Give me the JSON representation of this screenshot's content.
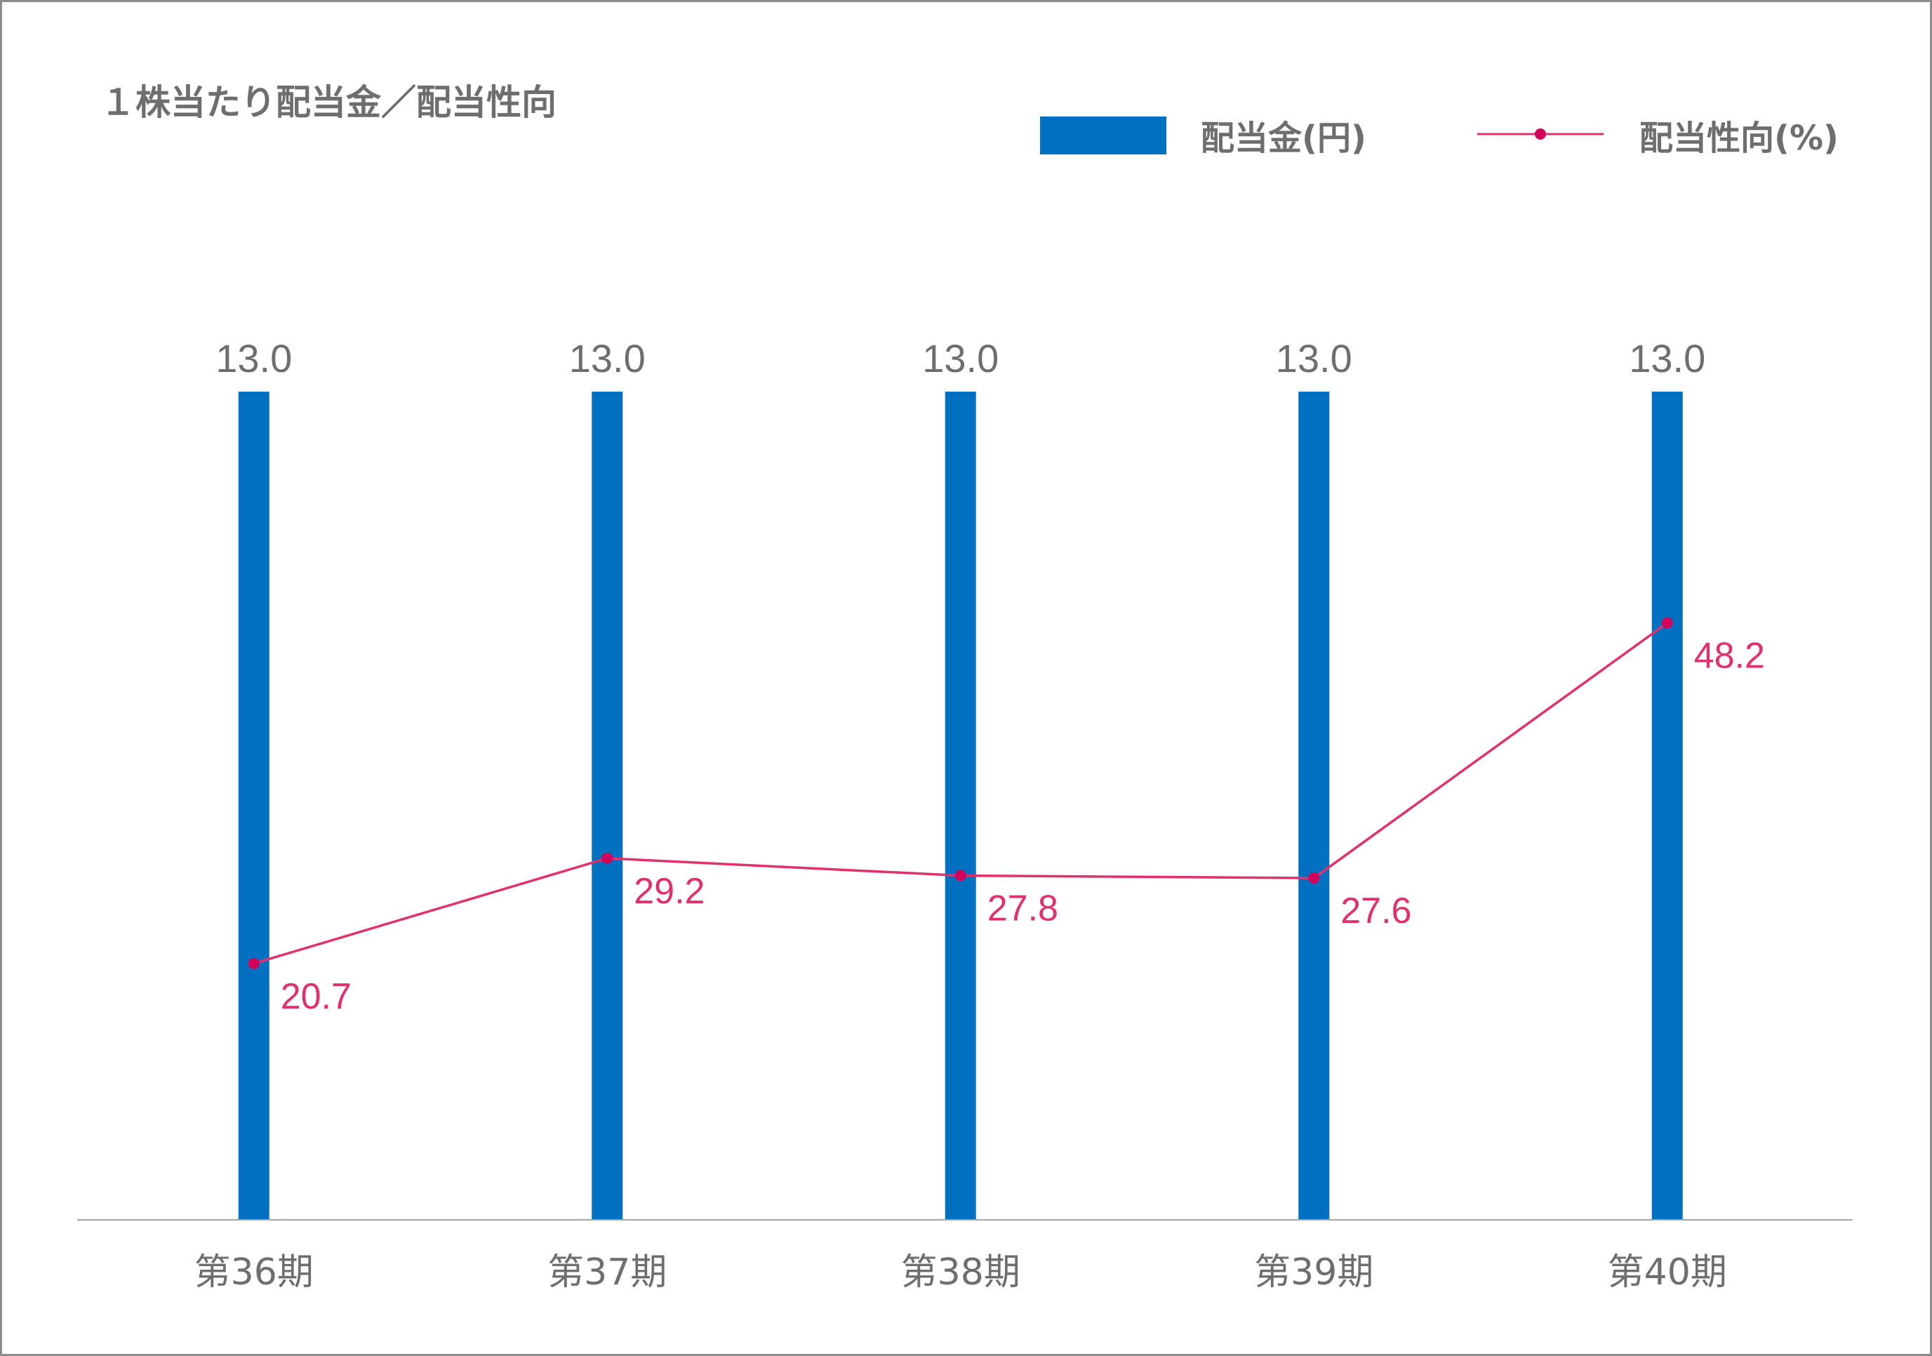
{
  "chart_data": {
    "type": "bar",
    "title": "１株当たり配当金／配当性向",
    "categories": [
      "第36期",
      "第37期",
      "第38期",
      "第39期",
      "第40期"
    ],
    "series": [
      {
        "name": "配当金(円)",
        "type": "bar",
        "values": [
          13.0,
          13.0,
          13.0,
          13.0,
          13.0
        ],
        "labels": [
          "13.0",
          "13.0",
          "13.0",
          "13.0",
          "13.0"
        ],
        "color": "#0070c0"
      },
      {
        "name": "配当性向(%)",
        "type": "line",
        "values": [
          20.7,
          29.2,
          27.8,
          27.6,
          48.2
        ],
        "labels": [
          "20.7",
          "29.2",
          "27.8",
          "27.6",
          "48.2"
        ],
        "color": "#e0306e",
        "marker_color": "#d1005a"
      }
    ],
    "bar_axis_range": [
      0,
      13.0
    ],
    "line_axis_range": [
      0,
      84.0
    ],
    "grid": false,
    "legend_position": "top-right",
    "axis_color": "#a6a6a6"
  }
}
